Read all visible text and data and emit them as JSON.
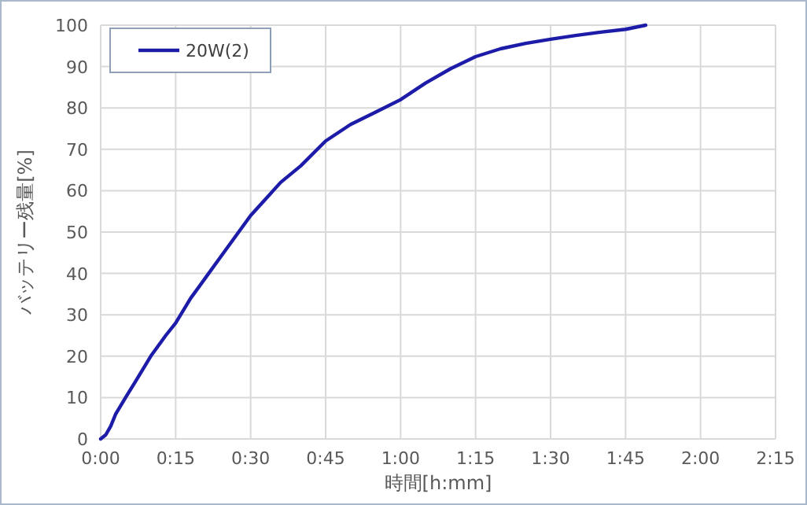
{
  "chart_data": {
    "type": "line",
    "xlabel": "時間[h:mm]",
    "ylabel": "バッテリー残量[%]",
    "xlim": [
      0,
      2.25
    ],
    "xticks": [
      {
        "value": 0,
        "label": "0:00"
      },
      {
        "value": 0.25,
        "label": "0:15"
      },
      {
        "value": 0.5,
        "label": "0:30"
      },
      {
        "value": 0.75,
        "label": "0:45"
      },
      {
        "value": 1,
        "label": "1:00"
      },
      {
        "value": 1.25,
        "label": "1:15"
      },
      {
        "value": 1.5,
        "label": "1:30"
      },
      {
        "value": 1.75,
        "label": "1:45"
      },
      {
        "value": 2,
        "label": "2:00"
      },
      {
        "value": 2.25,
        "label": "2:15"
      }
    ],
    "ylim": [
      0,
      100
    ],
    "yticks": [
      0,
      10,
      20,
      30,
      40,
      50,
      60,
      70,
      80,
      90,
      100
    ],
    "grid": true,
    "legend": "top left",
    "marker": "none",
    "line_style": "solid",
    "series": [
      {
        "name": "20W(2)",
        "color": "#1c1ca8",
        "x": [
          0,
          0.017,
          0.033,
          0.05,
          0.083,
          0.117,
          0.167,
          0.217,
          0.25,
          0.3,
          0.35,
          0.4,
          0.45,
          0.5,
          0.55,
          0.6,
          0.667,
          0.75,
          0.833,
          0.917,
          1,
          1.083,
          1.167,
          1.25,
          1.333,
          1.417,
          1.5,
          1.583,
          1.667,
          1.75,
          1.817
        ],
        "values": [
          0,
          1,
          3,
          6,
          10,
          14,
          20,
          25,
          28,
          34,
          39,
          44,
          49,
          54,
          58,
          62,
          66,
          72,
          76,
          79,
          82,
          86,
          89.5,
          92.4,
          94.3,
          95.6,
          96.6,
          97.5,
          98.3,
          99,
          100
        ]
      }
    ]
  }
}
